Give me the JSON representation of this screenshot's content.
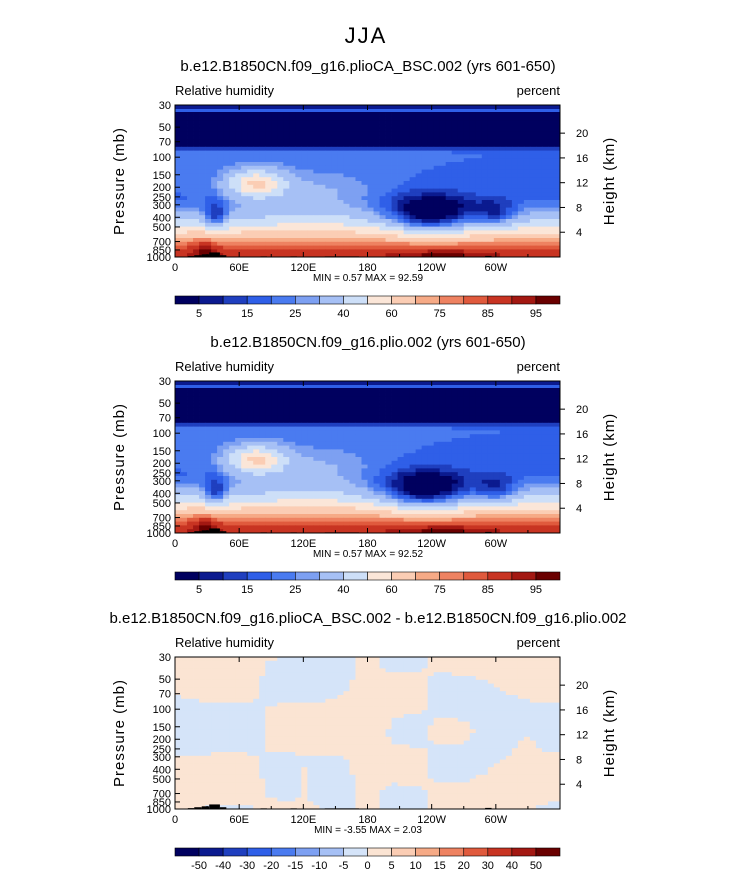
{
  "figure_title": "JJA",
  "chart_data": [
    {
      "type": "heatmap",
      "title": "b.e12.B1850CN.f09_g16.plioCA_BSC.002 (yrs 601-650)",
      "left_label": "Relative humidity",
      "right_label": "percent",
      "xlabel": "",
      "ylabel": "Pressure (mb)",
      "ylabel_right": "Height (km)",
      "x_ticks": [
        "0",
        "60E",
        "120E",
        "180",
        "120W",
        "60W"
      ],
      "x_tick_values": [
        0,
        60,
        120,
        180,
        240,
        300
      ],
      "xlim": [
        0,
        360
      ],
      "y_ticks": [
        "30",
        "50",
        "70",
        "100",
        "150",
        "200",
        "250",
        "300",
        "400",
        "500",
        "700",
        "850",
        "1000"
      ],
      "y_tick_values": [
        30,
        50,
        70,
        100,
        150,
        200,
        250,
        300,
        400,
        500,
        700,
        850,
        1000
      ],
      "ylim": [
        1000,
        30
      ],
      "height_ticks": [
        "20",
        "16",
        "12",
        "8",
        "4"
      ],
      "height_tick_values": [
        20,
        16,
        12,
        8,
        4
      ],
      "stats": "MIN =    0.57   MAX =   92.59",
      "min": 0.57,
      "max": 92.59,
      "colorbar_labels": [
        "5",
        "15",
        "25",
        "40",
        "60",
        "75",
        "85",
        "95"
      ],
      "features": [
        {
          "x": 240,
          "p": 380,
          "value": 5
        },
        {
          "x": 75,
          "p": 180,
          "value": 80
        },
        {
          "x": 38,
          "p": 400,
          "value": 40
        },
        {
          "x": 300,
          "p": 380,
          "value": 40
        },
        {
          "x": 250,
          "p": 950,
          "value": 90
        }
      ]
    },
    {
      "type": "heatmap",
      "title": "b.e12.B1850CN.f09_g16.plio.002 (yrs 601-650)",
      "left_label": "Relative humidity",
      "right_label": "percent",
      "xlabel": "",
      "ylabel": "Pressure (mb)",
      "ylabel_right": "Height (km)",
      "x_ticks": [
        "0",
        "60E",
        "120E",
        "180",
        "120W",
        "60W"
      ],
      "x_tick_values": [
        0,
        60,
        120,
        180,
        240,
        300
      ],
      "xlim": [
        0,
        360
      ],
      "y_ticks": [
        "30",
        "50",
        "70",
        "100",
        "150",
        "200",
        "250",
        "300",
        "400",
        "500",
        "700",
        "850",
        "1000"
      ],
      "y_tick_values": [
        30,
        50,
        70,
        100,
        150,
        200,
        250,
        300,
        400,
        500,
        700,
        850,
        1000
      ],
      "ylim": [
        1000,
        30
      ],
      "height_ticks": [
        "20",
        "16",
        "12",
        "8",
        "4"
      ],
      "height_tick_values": [
        20,
        16,
        12,
        8,
        4
      ],
      "stats": "MIN =    0.57   MAX =   92.52",
      "min": 0.57,
      "max": 92.52,
      "colorbar_labels": [
        "5",
        "15",
        "25",
        "40",
        "60",
        "75",
        "85",
        "95"
      ],
      "features": [
        {
          "x": 235,
          "p": 380,
          "value": 5
        },
        {
          "x": 75,
          "p": 180,
          "value": 80
        },
        {
          "x": 38,
          "p": 400,
          "value": 40
        },
        {
          "x": 300,
          "p": 380,
          "value": 40
        },
        {
          "x": 255,
          "p": 950,
          "value": 90
        }
      ]
    },
    {
      "type": "heatmap",
      "title": "b.e12.B1850CN.f09_g16.plioCA_BSC.002 - b.e12.B1850CN.f09_g16.plio.002",
      "left_label": "Relative humidity",
      "right_label": "percent",
      "xlabel": "",
      "ylabel": "Pressure (mb)",
      "ylabel_right": "Height (km)",
      "x_ticks": [
        "0",
        "60E",
        "120E",
        "180",
        "120W",
        "60W"
      ],
      "x_tick_values": [
        0,
        60,
        120,
        180,
        240,
        300
      ],
      "xlim": [
        0,
        360
      ],
      "y_ticks": [
        "30",
        "50",
        "70",
        "100",
        "150",
        "200",
        "250",
        "300",
        "400",
        "500",
        "700",
        "850",
        "1000"
      ],
      "y_tick_values": [
        30,
        50,
        70,
        100,
        150,
        200,
        250,
        300,
        400,
        500,
        700,
        850,
        1000
      ],
      "ylim": [
        1000,
        30
      ],
      "height_ticks": [
        "20",
        "16",
        "12",
        "8",
        "4"
      ],
      "height_tick_values": [
        20,
        16,
        12,
        8,
        4
      ],
      "stats": "MIN =   -3.55   MAX =    2.03",
      "min": -3.55,
      "max": 2.03,
      "colorbar_labels": [
        "-50",
        "-40",
        "-30",
        "-20",
        "-15",
        "-10",
        "-5",
        "0",
        "5",
        "10",
        "15",
        "20",
        "30",
        "40",
        "50"
      ]
    }
  ],
  "palettes": {
    "rh": [
      "#00005f",
      "#0b1a8f",
      "#1f3fbf",
      "#2f5fe8",
      "#4a7bf0",
      "#7da0f2",
      "#a6c0f5",
      "#cddff8",
      "#fbe6d8",
      "#fbcdb4",
      "#f6aa86",
      "#ee8261",
      "#e05a3d",
      "#c83422",
      "#a31812",
      "#6a0000"
    ],
    "diff": [
      "#00005f",
      "#0b1a8f",
      "#1f3fbf",
      "#2f5fe8",
      "#4a7bf0",
      "#7da0f2",
      "#a6c0f5",
      "#d5e4f9",
      "#fbe4d3",
      "#fbcdb4",
      "#f6aa86",
      "#ee8261",
      "#e05a3d",
      "#c83422",
      "#a31812",
      "#6a0000"
    ],
    "terrain": "#000000"
  }
}
